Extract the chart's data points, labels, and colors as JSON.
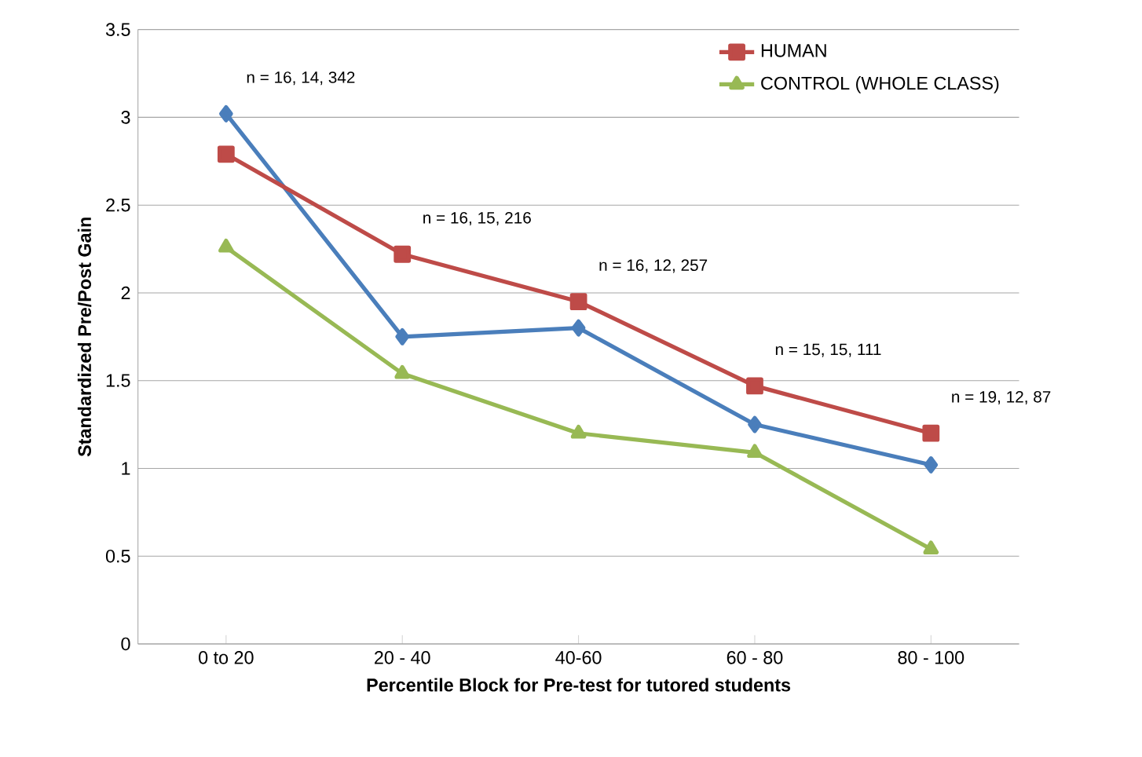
{
  "chart_data": {
    "type": "line",
    "xlabel": "Percentile Block  for Pre-test for tutored students",
    "ylabel": "Standardized Pre/Post Gain",
    "categories": [
      "0 to 20",
      "20 - 40",
      "40-60",
      "60 - 80",
      "80 - 100"
    ],
    "series": [
      {
        "color": "#4a7ebb",
        "marker": "diamond",
        "values": [
          3.02,
          1.75,
          1.8,
          1.25,
          1.02
        ]
      },
      {
        "name": "HUMAN",
        "color": "#be4b48",
        "marker": "square",
        "values": [
          2.79,
          2.22,
          1.95,
          1.47,
          1.2
        ]
      },
      {
        "name": "CONTROL (WHOLE CLASS)",
        "color": "#98b954",
        "marker": "triangle",
        "values": [
          2.26,
          1.54,
          1.2,
          1.09,
          0.54
        ]
      }
    ],
    "ylim": [
      0,
      3.5
    ],
    "yticks": [
      0,
      0.5,
      1,
      1.5,
      2,
      2.5,
      3,
      3.5
    ],
    "grid": "y",
    "legend": "top right",
    "line_style": "solid",
    "annotations": [
      "n = 16, 14, 342",
      "n = 16, 15, 216",
      "n = 16, 12, 257",
      "n = 15, 15, 111",
      "n = 19, 12, 87"
    ]
  }
}
